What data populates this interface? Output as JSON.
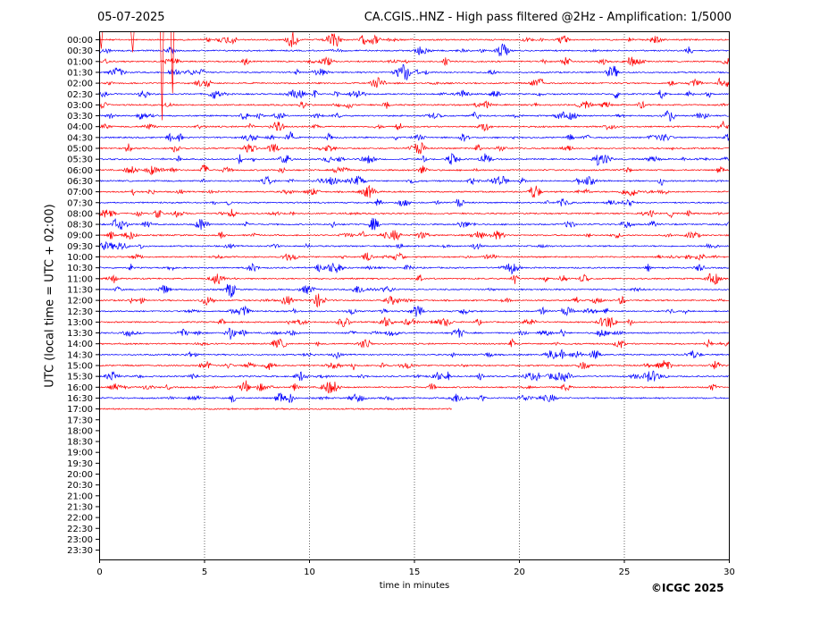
{
  "date": "05-07-2025",
  "title": "CA.CGIS..HNZ - High pass filtered @2Hz - Amplification: 1/5000",
  "copyright": "©ICGC 2025",
  "colors": {
    "odd_row": "#ff0000",
    "even_row": "#0000ff"
  },
  "chart_data": {
    "type": "line",
    "title": "CA.CGIS..HNZ - High pass filtered @2Hz - Amplification: 1/5000",
    "xlabel": "time in minutes",
    "ylabel": "UTC (local time = UTC + 02:00)",
    "xlim": [
      0,
      30
    ],
    "x_ticks": [
      0,
      5,
      10,
      15,
      20,
      25,
      30
    ],
    "x_tick_labels": [
      "0",
      "5",
      "10",
      "15",
      "20",
      "25",
      "30"
    ],
    "grid": "vertical dotted at each x tick",
    "rows": [
      "00:00",
      "00:30",
      "01:00",
      "01:30",
      "02:00",
      "02:30",
      "03:00",
      "03:30",
      "04:00",
      "04:30",
      "05:00",
      "05:30",
      "06:00",
      "06:30",
      "07:00",
      "07:30",
      "08:00",
      "08:30",
      "09:00",
      "09:30",
      "10:00",
      "10:30",
      "11:00",
      "11:30",
      "12:00",
      "12:30",
      "13:00",
      "13:30",
      "14:00",
      "14:30",
      "15:00",
      "15:30",
      "16:00",
      "16:30",
      "17:00",
      "17:30",
      "18:00",
      "18:30",
      "19:00",
      "19:30",
      "20:00",
      "20:30",
      "21:00",
      "21:30",
      "22:00",
      "22:30",
      "23:00",
      "23:30"
    ],
    "row_colors": [
      "red",
      "blue"
    ],
    "last_row_with_data": "17:00",
    "last_row_end_minute": 16.8,
    "large_spikes": [
      {
        "row": "00:00",
        "minute": 3.0
      },
      {
        "row": "00:00",
        "minute": 3.5
      },
      {
        "row": "00:00",
        "minute": 1.6
      },
      {
        "row": "00:00",
        "minute": 0.1
      }
    ]
  }
}
